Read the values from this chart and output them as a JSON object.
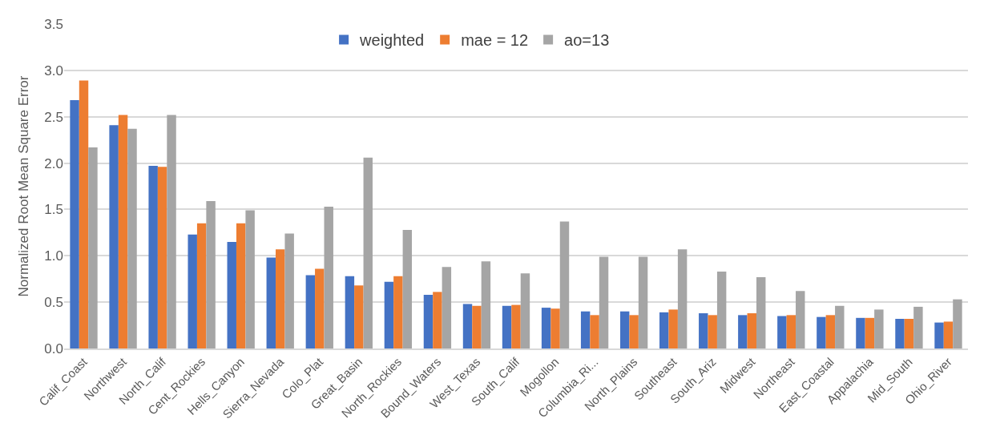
{
  "chart_data": {
    "type": "bar",
    "ylabel": "Normalized Root Mean Square Error",
    "categories": [
      "Calif_Coast",
      "Northwest",
      "North_Calif",
      "Cent_Rockies",
      "Hells_Canyon",
      "Sierra_Nevada",
      "Colo_Plat",
      "Great_Basin",
      "North_Rockies",
      "Bound_Waters",
      "West_Texas",
      "South_Calif",
      "Mogollon",
      "Columbia_Ri...",
      "North_Plains",
      "Southeast",
      "South_Ariz",
      "Midwest",
      "Northeast",
      "East_Coastal",
      "Appalachia",
      "Mid_South",
      "Ohio_River"
    ],
    "series": [
      {
        "name": "weighted",
        "color": "#4472c4",
        "values": [
          2.68,
          2.41,
          1.97,
          1.23,
          1.15,
          0.98,
          0.79,
          0.78,
          0.72,
          0.58,
          0.48,
          0.46,
          0.44,
          0.4,
          0.4,
          0.39,
          0.38,
          0.36,
          0.35,
          0.34,
          0.33,
          0.32,
          0.28
        ]
      },
      {
        "name": "mae = 12",
        "color": "#ed7d31",
        "values": [
          2.89,
          2.52,
          1.96,
          1.35,
          1.35,
          1.07,
          0.86,
          0.68,
          0.78,
          0.61,
          0.46,
          0.47,
          0.43,
          0.36,
          0.36,
          0.42,
          0.36,
          0.38,
          0.36,
          0.36,
          0.33,
          0.32,
          0.29
        ]
      },
      {
        "name": "ao=13",
        "color": "#a5a5a5",
        "values": [
          2.17,
          2.37,
          2.52,
          1.59,
          1.49,
          1.24,
          1.53,
          2.06,
          1.28,
          0.88,
          0.94,
          0.81,
          1.37,
          0.99,
          0.99,
          1.07,
          0.83,
          0.77,
          0.62,
          0.46,
          0.42,
          0.45,
          0.53
        ]
      }
    ],
    "ylim": [
      0,
      3.5
    ],
    "yticks": [
      {
        "value": 0,
        "label": "0.0"
      },
      {
        "value": 0.5,
        "label": "0.5"
      },
      {
        "value": 1,
        "label": "1.0"
      },
      {
        "value": 1.5,
        "label": "1.5"
      },
      {
        "value": 2,
        "label": "2.0"
      },
      {
        "value": 2.5,
        "label": "2.5"
      },
      {
        "value": 3,
        "label": "3.0"
      },
      {
        "value": 3.5,
        "label": "3.5"
      }
    ],
    "grid": "y",
    "legend": "top"
  }
}
